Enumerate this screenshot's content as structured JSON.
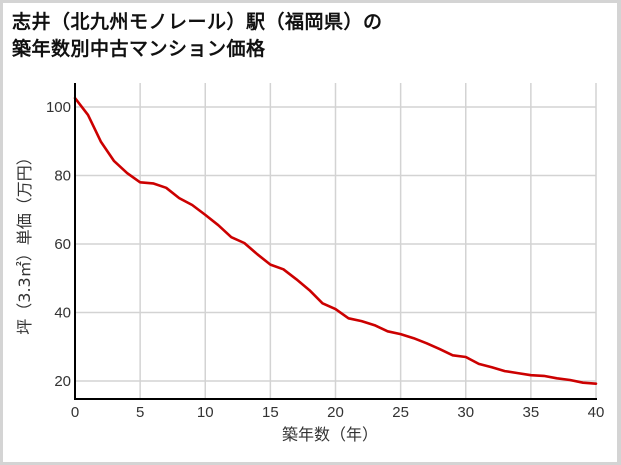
{
  "title": {
    "line1": "志井（北九州モノレール）駅（福岡県）の",
    "line2": "築年数別中古マンション価格"
  },
  "colors": {
    "line": "#cc0000",
    "grid": "#d3d3d3",
    "axis": "#000000",
    "background": "#ffffff",
    "border": "#d4d4d4"
  },
  "chart_data": {
    "type": "line",
    "title": "志井（北九州モノレール）駅（福岡県）の築年数別中古マンション価格",
    "xlabel": "築年数（年）",
    "ylabel": "坪（3.3㎡）単価（万円）",
    "xlim": [
      0,
      40
    ],
    "ylim": [
      15,
      106
    ],
    "x_ticks": [
      0,
      5,
      10,
      15,
      20,
      25,
      30,
      35,
      40
    ],
    "y_ticks": [
      20,
      40,
      60,
      80,
      100
    ],
    "grid": true,
    "legend": "none",
    "series": [
      {
        "name": "坪単価",
        "x": [
          0,
          1,
          2,
          3,
          4,
          5,
          6,
          7,
          8,
          9,
          10,
          11,
          12,
          13,
          14,
          15,
          16,
          17,
          18,
          19,
          20,
          21,
          22,
          23,
          24,
          25,
          26,
          27,
          28,
          29,
          30,
          31,
          32,
          33,
          34,
          35,
          36,
          37,
          38,
          39,
          40
        ],
        "values": [
          102.6,
          97.7,
          89.8,
          84.2,
          80.7,
          78.0,
          77.7,
          76.4,
          73.4,
          71.4,
          68.5,
          65.5,
          62.0,
          60.3,
          57.0,
          54.0,
          52.6,
          49.7,
          46.5,
          42.7,
          41.0,
          38.3,
          37.5,
          36.3,
          34.5,
          33.7,
          32.5,
          31.0,
          29.3,
          27.5,
          27.0,
          25.0,
          24.0,
          22.9,
          22.3,
          21.7,
          21.5,
          20.8,
          20.3,
          19.5,
          19.2
        ]
      }
    ]
  },
  "axes": {
    "x_label": "築年数（年）",
    "y_label": "坪（3.3㎡）単価（万円）",
    "x_tick_labels": [
      "0",
      "5",
      "10",
      "15",
      "20",
      "25",
      "30",
      "35",
      "40"
    ],
    "y_tick_labels": [
      "100",
      "80",
      "60",
      "40",
      "20"
    ]
  }
}
